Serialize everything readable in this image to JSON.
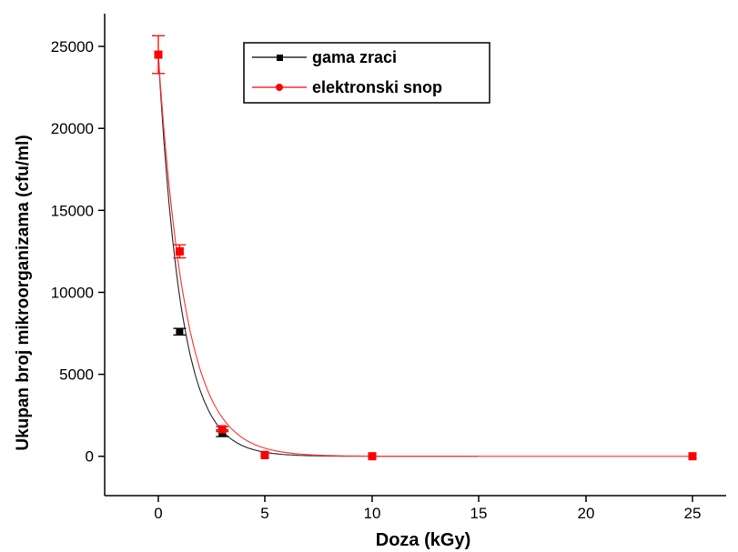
{
  "chart_data": {
    "type": "scatter",
    "title": "",
    "xlabel": "Doza (kGy)",
    "ylabel": "Ukupan broj mikroorganizama  (cfu/ml)",
    "x_ticks": [
      "0",
      "5",
      "10",
      "15",
      "20",
      "25"
    ],
    "y_ticks": [
      "0",
      "5000",
      "10000",
      "15000",
      "20000",
      "25000"
    ],
    "ylim": [
      -2400,
      27000
    ],
    "legend_position": "top-center",
    "series": [
      {
        "name": "gama zraci",
        "color": "#000000",
        "marker": "square",
        "points": [
          {
            "x": "0",
            "y": 24500,
            "err": 0
          },
          {
            "x": "1",
            "y": 7600,
            "err": 200
          },
          {
            "x": "3",
            "y": 1400,
            "err": 200
          },
          {
            "x": "5",
            "y": 50,
            "err": 0
          },
          {
            "x": "10",
            "y": 0,
            "err": 0
          },
          {
            "x": "25",
            "y": 0,
            "err": 0
          }
        ],
        "fit": "exponential decay"
      },
      {
        "name": "elektronski snop",
        "color": "#ff0000",
        "marker": "circle",
        "points": [
          {
            "x": "0",
            "y": 24500,
            "err": 1150
          },
          {
            "x": "1",
            "y": 12500,
            "err": 400
          },
          {
            "x": "3",
            "y": 1650,
            "err": 150
          },
          {
            "x": "5",
            "y": 80,
            "err": 0
          },
          {
            "x": "10",
            "y": 0,
            "err": 0
          },
          {
            "x": "25",
            "y": 0,
            "err": 0
          }
        ],
        "fit": "exponential decay"
      }
    ]
  }
}
